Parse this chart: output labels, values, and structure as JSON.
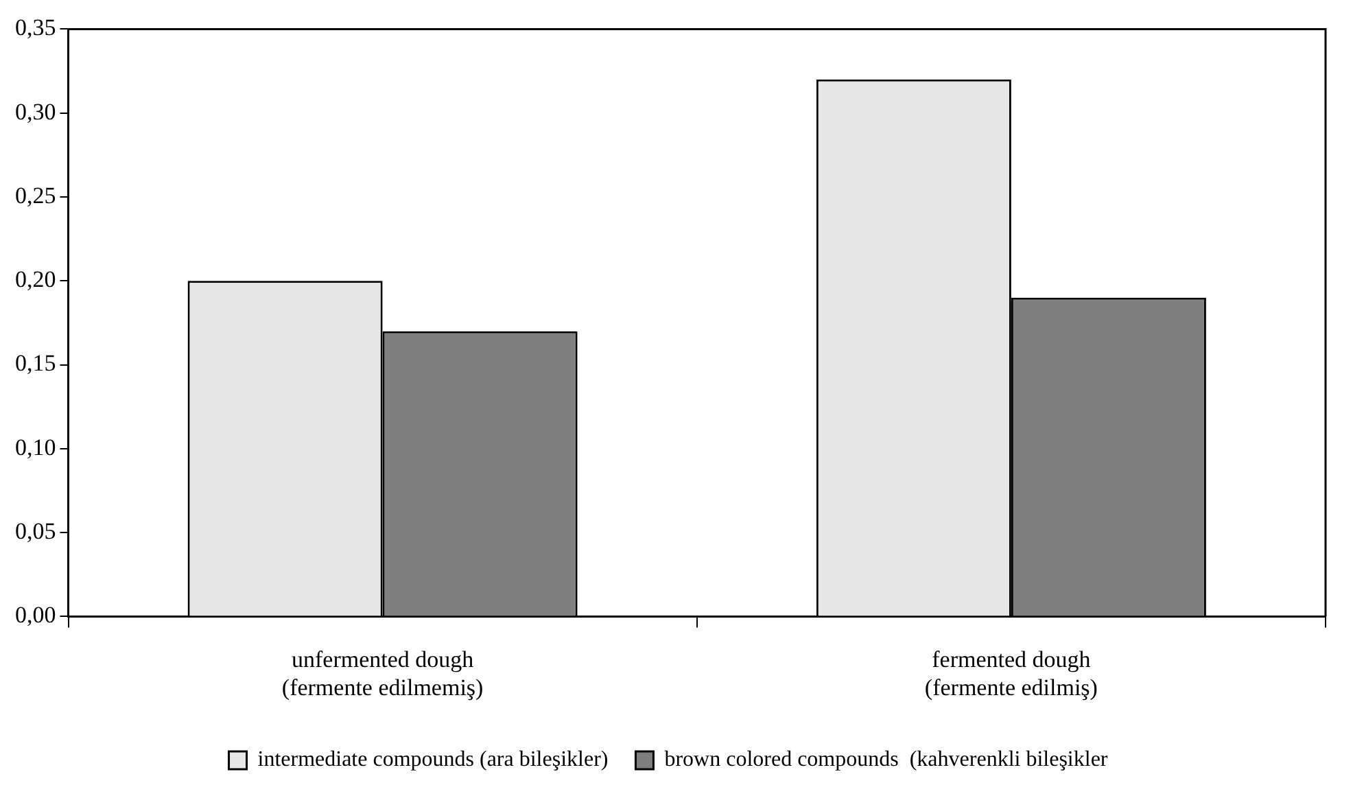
{
  "chart_data": {
    "type": "bar",
    "categories": [
      "unfermented dough\n(fermente edilmemiş)",
      "fermented dough\n(fermente edilmiş)"
    ],
    "series": [
      {
        "name": "intermediate compounds (ara bileşikler)",
        "color": "#e6e6e6",
        "values": [
          0.2,
          0.32
        ]
      },
      {
        "name": "brown colored compounds  (kahverenkli bileşikler",
        "color": "#7f7f7f",
        "values": [
          0.17,
          0.19
        ]
      }
    ],
    "ylim": [
      0,
      0.35
    ],
    "yticks": [
      {
        "value": 0,
        "label": "0,00"
      },
      {
        "value": 0.05,
        "label": "0,05"
      },
      {
        "value": 0.1,
        "label": "0,10"
      },
      {
        "value": 0.15,
        "label": "0,15"
      },
      {
        "value": 0.2,
        "label": "0,20"
      },
      {
        "value": 0.25,
        "label": "0,25"
      },
      {
        "value": 0.3,
        "label": "0,30"
      },
      {
        "value": 0.35,
        "label": "0,35"
      }
    ],
    "grid": false,
    "legend": "bottom"
  }
}
